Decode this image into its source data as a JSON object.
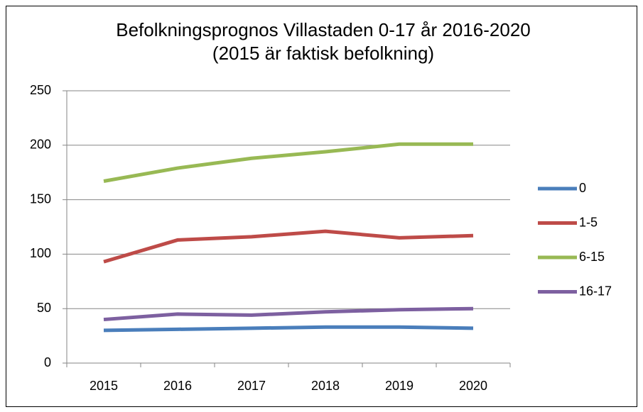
{
  "chart_data": {
    "type": "line",
    "title": "Befolkningsprognos Villastaden 0-17 år 2016-2020 (2015 är faktisk befolkning)",
    "categories": [
      "2015",
      "2016",
      "2017",
      "2018",
      "2019",
      "2020"
    ],
    "series": [
      {
        "name": "0",
        "color": "#4a7ebb",
        "values": [
          30,
          31,
          32,
          33,
          33,
          32
        ]
      },
      {
        "name": "1-5",
        "color": "#be4b48",
        "values": [
          93,
          113,
          116,
          121,
          115,
          117
        ]
      },
      {
        "name": "6-15",
        "color": "#98b954",
        "values": [
          167,
          179,
          188,
          194,
          201,
          201
        ]
      },
      {
        "name": "16-17",
        "color": "#7d60a0",
        "values": [
          40,
          45,
          44,
          47,
          49,
          50
        ]
      }
    ],
    "ylim": [
      0,
      250
    ],
    "yticks": [
      0,
      50,
      100,
      150,
      200,
      250
    ],
    "grid": true,
    "legend": "right"
  }
}
